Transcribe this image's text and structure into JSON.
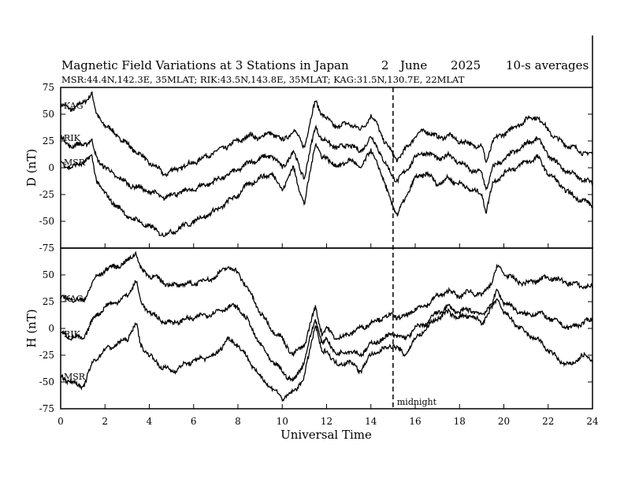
{
  "header": {
    "title_left": "Magnetic Field Variations at 3 Stations in Japan",
    "title_day": "2",
    "title_month": "June",
    "title_year": "2025",
    "title_avg": "10-s averages",
    "subtitle": "MSR:44.4N,142.3E, 35MLAT;  RIK:43.5N,143.8E, 35MLAT;  KAG:31.5N,130.7E, 22MLAT"
  },
  "chart_data": [
    {
      "type": "line",
      "panel": "D",
      "ylabel": "D (nT)",
      "xlim": [
        0,
        24
      ],
      "ylim": [
        -75,
        75
      ],
      "yticks": [
        75,
        50,
        25,
        0,
        -25,
        -50,
        -75
      ],
      "ytick_labels": [
        "75",
        "50",
        "25",
        "0",
        "-25",
        "-50",
        "-75"
      ],
      "series": [
        {
          "name": "KAG",
          "color": "#000000",
          "x": [
            0,
            0.5,
            1,
            1.4,
            1.6,
            2,
            3,
            4,
            4.7,
            5,
            6,
            7,
            8,
            8.5,
            9,
            9.5,
            10,
            10.5,
            11,
            11.5,
            11.8,
            12,
            12.5,
            13,
            13.5,
            14,
            14.3,
            14.6,
            15,
            15.2,
            15.5,
            16,
            16.5,
            17,
            17.5,
            18,
            18.5,
            19,
            19.2,
            19.5,
            20,
            20.5,
            21,
            21.5,
            22,
            22.5,
            23,
            23.5,
            24
          ],
          "y": [
            58,
            55,
            60,
            70,
            50,
            40,
            22,
            5,
            -6,
            -3,
            5,
            15,
            25,
            30,
            28,
            33,
            25,
            35,
            20,
            63,
            50,
            45,
            38,
            42,
            35,
            48,
            40,
            25,
            12,
            8,
            15,
            30,
            35,
            28,
            30,
            25,
            22,
            20,
            5,
            25,
            32,
            38,
            45,
            48,
            35,
            25,
            20,
            15,
            12
          ]
        },
        {
          "name": "RIK",
          "color": "#000000",
          "x": [
            0,
            0.5,
            1,
            1.4,
            1.6,
            2,
            3,
            4,
            4.7,
            5,
            6,
            7,
            8,
            8.5,
            9,
            9.5,
            10,
            10.5,
            11,
            11.5,
            11.8,
            12,
            12.5,
            13,
            13.5,
            14,
            14.3,
            14.6,
            15,
            15.2,
            15.5,
            16,
            16.5,
            17,
            17.5,
            18,
            18.5,
            19,
            19.2,
            19.5,
            20,
            20.5,
            21,
            21.5,
            22,
            22.5,
            23,
            23.5,
            24
          ],
          "y": [
            28,
            20,
            22,
            25,
            10,
            0,
            -15,
            -22,
            -28,
            -25,
            -20,
            -12,
            -2,
            5,
            8,
            12,
            0,
            15,
            -10,
            40,
            25,
            25,
            18,
            22,
            15,
            28,
            20,
            5,
            -8,
            -12,
            -5,
            10,
            15,
            8,
            12,
            5,
            -2,
            -5,
            -20,
            0,
            8,
            15,
            22,
            28,
            12,
            2,
            -5,
            -10,
            -15
          ]
        },
        {
          "name": "MSR",
          "color": "#000000",
          "x": [
            0,
            0.5,
            1,
            1.4,
            1.6,
            2,
            3,
            4,
            4.7,
            5,
            6,
            7,
            8,
            8.5,
            9,
            9.5,
            10,
            10.5,
            11,
            11.5,
            11.8,
            12,
            12.5,
            13,
            13.5,
            14,
            14.3,
            14.6,
            15,
            15.2,
            15.5,
            16,
            16.5,
            17,
            17.5,
            18,
            18.5,
            19,
            19.2,
            19.5,
            20,
            20.5,
            21,
            21.5,
            22,
            22.5,
            23,
            23.5,
            24
          ],
          "y": [
            5,
            0,
            5,
            10,
            -10,
            -25,
            -45,
            -55,
            -63,
            -60,
            -50,
            -40,
            -25,
            -15,
            -10,
            -5,
            -20,
            0,
            -35,
            25,
            8,
            10,
            0,
            8,
            0,
            15,
            5,
            -15,
            -35,
            -45,
            -30,
            -10,
            -5,
            -15,
            -10,
            -15,
            -20,
            -25,
            -40,
            -15,
            -5,
            0,
            5,
            10,
            -5,
            -15,
            -25,
            -30,
            -35
          ]
        }
      ]
    },
    {
      "type": "line",
      "panel": "H",
      "ylabel": "H (nT)",
      "xlabel": "Universal Time",
      "xlim": [
        0,
        24
      ],
      "ylim": [
        -75,
        75
      ],
      "xticks": [
        0,
        2,
        4,
        6,
        8,
        10,
        12,
        14,
        16,
        18,
        20,
        22,
        24
      ],
      "xtick_labels": [
        "0",
        "2",
        "4",
        "6",
        "8",
        "10",
        "12",
        "14",
        "16",
        "18",
        "20",
        "22",
        "24"
      ],
      "yticks": [
        50,
        25,
        0,
        -25,
        -50,
        -75
      ],
      "ytick_labels": [
        "50",
        "25",
        "0",
        "-25",
        "-50",
        "-75"
      ],
      "series": [
        {
          "name": "KAG",
          "color": "#000000",
          "x": [
            0,
            0.5,
            1,
            1.5,
            2,
            2.5,
            3,
            3.4,
            3.6,
            4,
            4.5,
            5,
            6,
            7,
            7.5,
            8,
            8.5,
            9,
            9.5,
            10,
            10.5,
            11,
            11.5,
            11.8,
            12,
            12.5,
            13,
            13.5,
            14,
            14.5,
            15,
            15.5,
            16,
            16.5,
            17,
            17.5,
            18,
            18.5,
            19,
            19.5,
            19.7,
            20,
            20.5,
            21,
            21.5,
            22,
            22.5,
            23,
            23.5,
            24
          ],
          "y": [
            28,
            28,
            25,
            45,
            55,
            58,
            62,
            72,
            55,
            50,
            45,
            40,
            42,
            48,
            58,
            52,
            35,
            15,
            0,
            -10,
            -25,
            -15,
            20,
            -5,
            0,
            -10,
            -5,
            0,
            5,
            10,
            12,
            10,
            18,
            22,
            30,
            35,
            30,
            35,
            30,
            45,
            58,
            52,
            45,
            42,
            45,
            48,
            45,
            42,
            40,
            38
          ]
        },
        {
          "name": "RIK",
          "color": "#000000",
          "x": [
            0,
            0.5,
            1,
            1.5,
            2,
            2.5,
            3,
            3.4,
            3.6,
            4,
            4.5,
            5,
            6,
            7,
            7.5,
            8,
            8.5,
            9,
            9.5,
            10,
            10.5,
            11,
            11.5,
            11.8,
            12,
            12.5,
            13,
            13.5,
            14,
            14.5,
            15,
            15.5,
            16,
            16.5,
            17,
            17.5,
            18,
            18.5,
            19,
            19.5,
            19.7,
            20,
            20.5,
            21,
            21.5,
            22,
            22.5,
            23,
            23.5,
            24
          ],
          "y": [
            -5,
            -8,
            -10,
            10,
            20,
            25,
            30,
            45,
            25,
            15,
            8,
            5,
            10,
            15,
            20,
            20,
            5,
            -15,
            -30,
            -40,
            -50,
            -30,
            10,
            -15,
            -10,
            -25,
            -20,
            -25,
            -15,
            -10,
            -5,
            -10,
            0,
            5,
            15,
            20,
            15,
            18,
            12,
            25,
            35,
            25,
            18,
            12,
            15,
            10,
            5,
            0,
            5,
            8
          ]
        },
        {
          "name": "MSR",
          "color": "#000000",
          "x": [
            0,
            0.5,
            1,
            1.5,
            2,
            2.5,
            3,
            3.4,
            3.6,
            4,
            4.5,
            5,
            6,
            7,
            7.5,
            8,
            8.5,
            9,
            9.5,
            10,
            10.5,
            11,
            11.5,
            11.8,
            12,
            12.5,
            13,
            13.5,
            14,
            14.5,
            15,
            15.5,
            16,
            16.5,
            17,
            17.5,
            18,
            18.5,
            19,
            19.5,
            19.7,
            20,
            20.5,
            21,
            21.5,
            22,
            22.5,
            23,
            23.5,
            24
          ],
          "y": [
            -45,
            -50,
            -55,
            -30,
            -20,
            -15,
            -10,
            5,
            -15,
            -25,
            -35,
            -40,
            -30,
            -25,
            -10,
            -15,
            -30,
            -45,
            -55,
            -65,
            -60,
            -45,
            5,
            -25,
            -20,
            -35,
            -30,
            -40,
            -25,
            -20,
            -15,
            -25,
            -10,
            0,
            10,
            15,
            10,
            12,
            5,
            20,
            28,
            15,
            5,
            -5,
            -10,
            -20,
            -30,
            -35,
            -25,
            -30
          ]
        }
      ]
    }
  ],
  "annotations": {
    "midnight_label": "midnight",
    "midnight_ut": 15
  }
}
